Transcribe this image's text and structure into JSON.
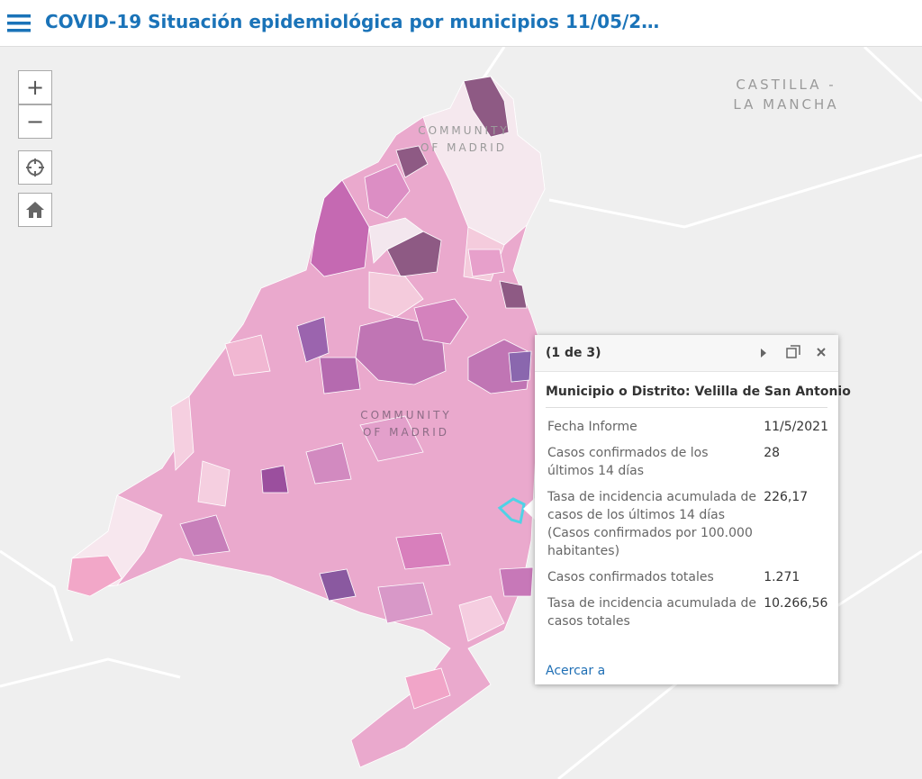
{
  "header": {
    "title": "COVID-19 Situación epidemiológica por municipios 11/05/2…"
  },
  "controls": {
    "zoom_in": "+",
    "zoom_out": "−"
  },
  "map": {
    "labels": [
      "CASTILLA -",
      "LA MANCHA",
      "COMMUNITY",
      "OF MADRID",
      "COMMUNITY",
      "OF MADRID"
    ]
  },
  "popup": {
    "pager": "(1 de 3)",
    "heading": "Municipio o Distrito: Velilla de San Antonio",
    "fields": [
      [
        "Fecha Informe",
        "11/5/2021"
      ],
      [
        "Casos confirmados de los últimos 14 días",
        "28"
      ],
      [
        "Tasa de incidencia acumulada de casos de los últimos 14 días (Casos confirmados por 100.000 habitantes)",
        "226,17"
      ],
      [
        "Casos confirmados totales",
        "1.271"
      ],
      [
        "Tasa de incidencia acumulada de casos totales",
        "10.266,56"
      ]
    ],
    "action": "Acercar a"
  }
}
